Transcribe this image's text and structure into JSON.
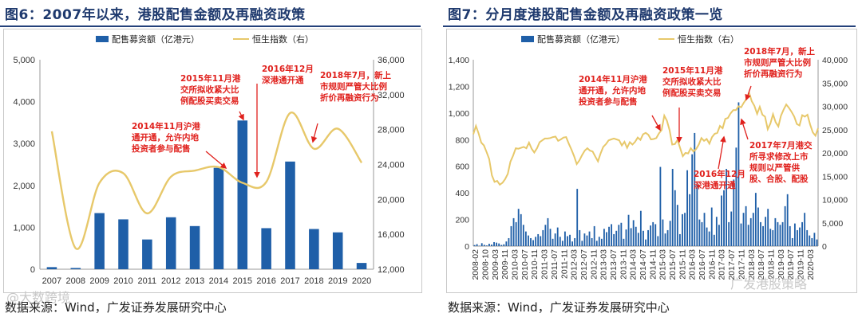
{
  "left": {
    "title": "图6：2007年以来，港股配售金额及再融资政策",
    "source": "数据来源：Wind，广发证券发展研究中心",
    "watermark": "@大数跨境"
  },
  "right": {
    "title": "图7：分月度港股配售金额及再融资政策一览",
    "source": "数据来源：Wind，广发证券发展研究中心",
    "watermark": "广发港股策略"
  },
  "colors": {
    "bar": "#1f5fa8",
    "line": "#e7c86a",
    "annotation": "#e0211d",
    "title": "#1f3a6e"
  },
  "chart_data": [
    {
      "type": "bar+line",
      "categories": [
        "2007",
        "2008",
        "2009",
        "2010",
        "2011",
        "2012",
        "2013",
        "2014",
        "2015",
        "2016",
        "2017",
        "2018",
        "2019",
        "2020"
      ],
      "series": [
        {
          "name": "配售募资额（亿港元）",
          "axis": "left",
          "values": [
            50,
            30,
            1340,
            1190,
            710,
            1240,
            1030,
            2420,
            3550,
            980,
            2570,
            960,
            880,
            150
          ]
        },
        {
          "name": "恒生指数（右）",
          "axis": "right",
          "values": [
            27800,
            14400,
            21900,
            23000,
            18400,
            22600,
            23300,
            23700,
            21900,
            22000,
            29900,
            25800,
            28100,
            24200
          ]
        }
      ],
      "ylim_left": [
        0,
        5000
      ],
      "yticks_left": [
        "0",
        "1,000",
        "2,000",
        "3,000",
        "4,000",
        "5,000"
      ],
      "ylim_right": [
        12000,
        36000
      ],
      "yticks_right": [
        "12,000",
        "16,000",
        "20,000",
        "24,000",
        "28,000",
        "32,000",
        "36,000"
      ],
      "annotations": [
        {
          "text": [
            "2014年11月沪港",
            "通开通，允许内地",
            "投资者参与配售"
          ],
          "x_category": "2014"
        },
        {
          "text": [
            "2015年11月港",
            "交所拟收紧大比",
            "例配股买卖交易"
          ],
          "x_category": "2015"
        },
        {
          "text": [
            "2016年12月",
            "深港通开通"
          ],
          "x_category": "2016"
        },
        {
          "text": [
            "2018年7月，新上",
            "市规则严管大比例",
            "折价再融资行为"
          ],
          "x_category": "2018"
        }
      ]
    },
    {
      "type": "bar+line",
      "x_tick_labels": [
        "2008-02",
        "2008-10",
        "2009-03",
        "2009-11",
        "2010-03",
        "2010-07",
        "2010-11",
        "2011-03",
        "2011-07",
        "2011-11",
        "2012-03",
        "2012-07",
        "2012-11",
        "2013-03",
        "2013-07",
        "2013-11",
        "2014-03",
        "2014-07",
        "2014-11",
        "2015-03",
        "2015-07",
        "2015-11",
        "2016-03",
        "2016-07",
        "2016-11",
        "2017-03",
        "2017-07",
        "2017-11",
        "2018-03",
        "2018-07",
        "2018-11",
        "2019-03",
        "2019-07",
        "2019-11",
        "2020-03"
      ],
      "series": [
        {
          "name": "配售募资额（亿港元）",
          "axis": "left",
          "values": [
            8,
            15,
            3,
            22,
            10,
            5,
            18,
            12,
            30,
            26,
            20,
            9,
            14,
            35,
            60,
            150,
            210,
            180,
            280,
            240,
            160,
            110,
            80,
            60,
            45,
            70,
            90,
            75,
            120,
            160,
            210,
            130,
            55,
            95,
            140,
            70,
            40,
            110,
            75,
            85,
            35,
            60,
            430,
            120,
            40,
            95,
            80,
            110,
            60,
            150,
            40,
            70,
            55,
            130,
            105,
            145,
            165,
            90,
            115,
            160,
            175,
            55,
            125,
            235,
            135,
            195,
            145,
            100,
            265,
            115,
            50,
            120,
            155,
            180,
            165,
            75,
            595,
            200,
            95,
            120,
            190,
            580,
            420,
            310,
            90,
            240,
            250,
            570,
            390,
            690,
            850,
            470,
            200,
            180,
            250,
            140,
            110,
            290,
            85,
            220,
            160,
            380,
            420,
            580,
            180,
            260,
            500,
            740,
            1080,
            170,
            250,
            300,
            160,
            210,
            250,
            400,
            290,
            180,
            150,
            220,
            280,
            130,
            120,
            210,
            180,
            160,
            180,
            300,
            390,
            150,
            60,
            170,
            120,
            140,
            180,
            250,
            120,
            80,
            60,
            100,
            50
          ]
        },
        {
          "name": "恒生指数（右）",
          "axis": "right",
          "values": [
            24000,
            25800,
            24200,
            22200,
            21600,
            20200,
            18700,
            15200,
            13800,
            14000,
            13200,
            13600,
            14400,
            15500,
            18100,
            19400,
            21000,
            20900,
            21100,
            21300,
            21000,
            22200,
            20900,
            20100,
            21000,
            22300,
            22700,
            23100,
            23100,
            23200,
            23400,
            23500,
            22600,
            22900,
            23300,
            23400,
            22000,
            20700,
            19300,
            17600,
            18400,
            19500,
            20500,
            21000,
            20500,
            20300,
            19200,
            18200,
            19900,
            21300,
            21900,
            22700,
            22900,
            23100,
            22900,
            22700,
            21600,
            22400,
            21100,
            22300,
            21800,
            22400,
            23300,
            22800,
            24000,
            24300,
            23900,
            22900,
            23000,
            23200,
            24200,
            24900,
            28000,
            26900,
            24900,
            21800,
            21900,
            22800,
            21000,
            19300,
            20000,
            19900,
            21000,
            20300,
            20800,
            21800,
            23200,
            22600,
            23000,
            22000,
            23400,
            24100,
            24300,
            25800,
            25300,
            27300,
            27500,
            28500,
            29200,
            29200,
            30000,
            29800,
            30800,
            31600,
            32900,
            31100,
            30100,
            28400,
            29900,
            28200,
            27800,
            25100,
            26300,
            28300,
            26600,
            25700,
            28000,
            29300,
            30400,
            29700,
            28800,
            27800,
            26200,
            25900,
            28100,
            27800,
            28200,
            26100,
            24400,
            23700,
            25300
          ]
        }
      ],
      "ylim_left": [
        0,
        1400
      ],
      "yticks_left": [
        "0",
        "200",
        "400",
        "600",
        "800",
        "1,000",
        "1,200",
        "1,400"
      ],
      "ylim_right": [
        0,
        40000
      ],
      "yticks_right": [
        "0",
        "5,000",
        "10,000",
        "15,000",
        "20,000",
        "25,000",
        "30,000",
        "35,000",
        "40,000"
      ],
      "annotations": [
        {
          "text": [
            "2014年11月沪港",
            "通开通，允许内地",
            "投资者参与配售"
          ]
        },
        {
          "text": [
            "2015年11月港",
            "交所拟收紧大比",
            "例配股买卖交易"
          ]
        },
        {
          "text": [
            "2016年12月",
            "深港通开通"
          ]
        },
        {
          "text": [
            "2017年7月港交",
            "所寻求修改上市",
            "规则以严管供",
            "股、合股、配股"
          ]
        },
        {
          "text": [
            "2018年7月，新上",
            "市规则严管大比例",
            "折价再融资行为"
          ]
        }
      ]
    }
  ]
}
